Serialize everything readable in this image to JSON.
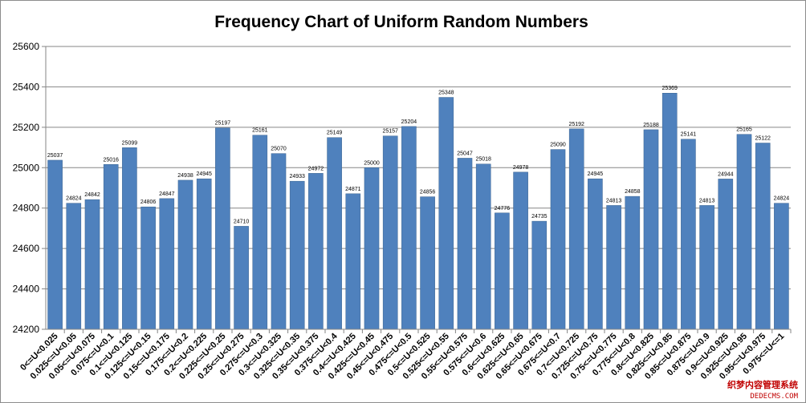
{
  "chart_data": {
    "type": "bar",
    "title": "Frequency Chart of Uniform Random Numbers",
    "xlabel": "",
    "ylabel": "",
    "ylim": [
      24200,
      25600
    ],
    "yticks": [
      "24200",
      "24400",
      "24600",
      "24800",
      "25000",
      "25200",
      "25400",
      "25600"
    ],
    "grid": true,
    "legend": "none",
    "bar_color": "#4f81bd",
    "categories": [
      "0<=U<0.025",
      "0.025<=U<0.05",
      "0.05<=U<0.075",
      "0.075<=U<0.1",
      "0.1<=U<0.125",
      "0.125<=U<0.15",
      "0.15<=U<0.175",
      "0.175<=U<0.2",
      "0.2<=U<0.225",
      "0.225<=U<0.25",
      "0.25<=U<0.275",
      "0.275<=U<0.3",
      "0.3<=U<0.325",
      "0.325<=U<0.35",
      "0.35<=U<0.375",
      "0.375<=U<0.4",
      "0.4<=U<0.425",
      "0.425<=U<0.45",
      "0.45<=U<0.475",
      "0.475<=U<0.5",
      "0.5<=U<0.525",
      "0.525<=U<0.55",
      "0.55<=U<0.575",
      "0.575<=U<0.6",
      "0.6<=U<0.625",
      "0.625<=U<0.65",
      "0.65<=U<0.675",
      "0.675<=U<0.7",
      "0.7<=U<0.725",
      "0.725<=U<0.75",
      "0.75<=U<0.775",
      "0.775<=U<0.8",
      "0.8<=U<0.825",
      "0.825<=U<0.85",
      "0.85<=U<0.875",
      "0.875<=U<0.9",
      "0.9<=U<0.925",
      "0.925<=U<0.95",
      "0.95<=U<0.975",
      "0.975<=U<=1"
    ],
    "values": [
      25037,
      24824,
      24842,
      25016,
      25099,
      24806,
      24847,
      24938,
      24945,
      25197,
      24710,
      25161,
      25070,
      24933,
      24972,
      25149,
      24871,
      25000,
      25157,
      25204,
      24856,
      25348,
      25047,
      25018,
      24776,
      24978,
      24735,
      25090,
      25192,
      24945,
      24813,
      24858,
      25188,
      25369,
      25141,
      24813,
      24944,
      25165,
      25122,
      24824
    ]
  },
  "watermark": {
    "line1": "织梦内容管理系统",
    "line2": "DEDECMS.COM"
  }
}
